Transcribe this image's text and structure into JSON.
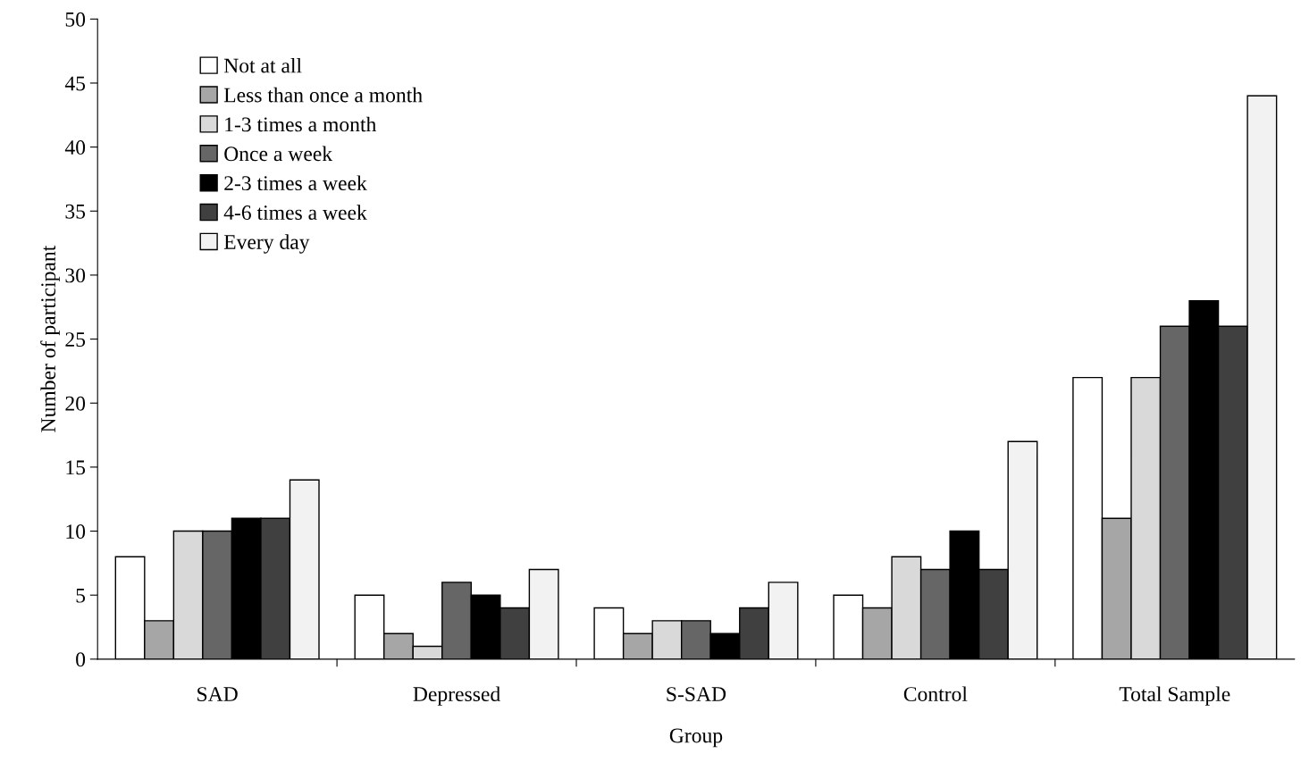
{
  "chart_data": {
    "type": "bar",
    "xlabel": "Group",
    "ylabel": "Number of participant",
    "categories": [
      "SAD",
      "Depressed",
      "S-SAD",
      "Control",
      "Total Sample"
    ],
    "series": [
      {
        "name": "Not at all",
        "color": "#ffffff",
        "values": [
          8,
          5,
          4,
          5,
          22
        ]
      },
      {
        "name": "Less than once a month",
        "color": "#a6a6a6",
        "values": [
          3,
          2,
          2,
          4,
          11
        ]
      },
      {
        "name": "1-3 times a month",
        "color": "#d9d9d9",
        "values": [
          10,
          1,
          3,
          8,
          22
        ]
      },
      {
        "name": "Once a week",
        "color": "#666666",
        "values": [
          10,
          6,
          3,
          7,
          26
        ]
      },
      {
        "name": "2-3 times a week",
        "color": "#000000",
        "values": [
          11,
          5,
          2,
          10,
          28
        ]
      },
      {
        "name": "4-6 times a week",
        "color": "#404040",
        "values": [
          11,
          4,
          4,
          7,
          26
        ]
      },
      {
        "name": "Every day",
        "color": "#f2f2f2",
        "values": [
          14,
          7,
          6,
          17,
          44
        ]
      }
    ],
    "ylim": [
      0,
      50
    ],
    "yticks": [
      0,
      5,
      10,
      15,
      20,
      25,
      30,
      35,
      40,
      45,
      50
    ],
    "grid": false,
    "legend": "top left"
  }
}
